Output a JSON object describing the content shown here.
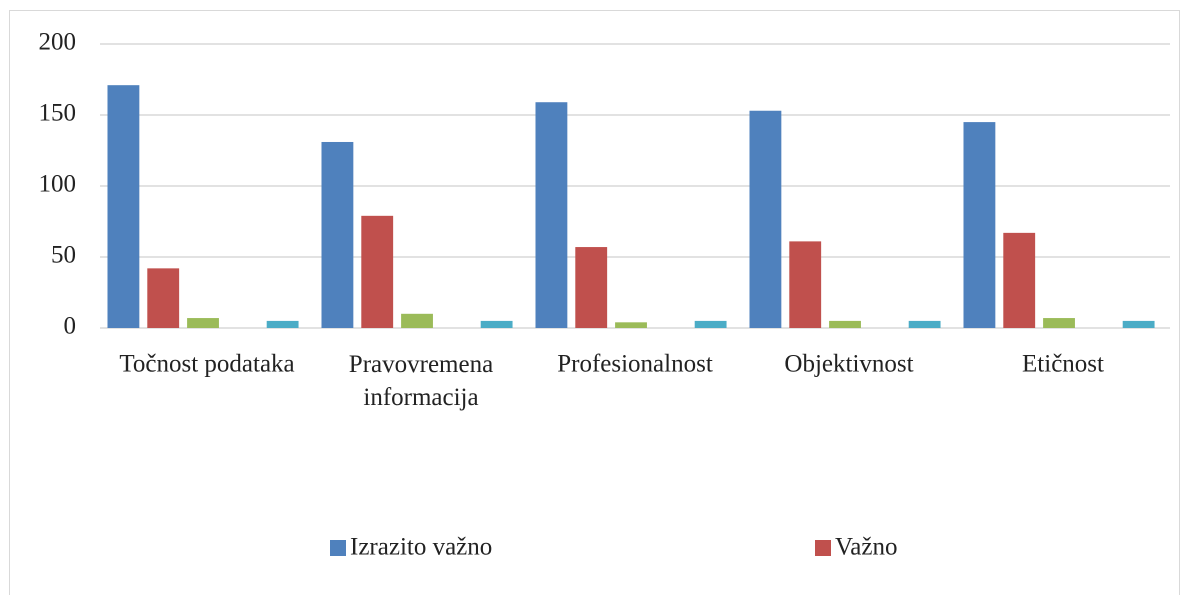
{
  "chart_data": {
    "type": "bar",
    "categories": [
      "Točnost podataka",
      "Pravovremena informacija",
      "Profesionalnost",
      "Objektivnost",
      "Etičnost"
    ],
    "series": [
      {
        "name": "Izrazito važno",
        "color": "#4f81bd",
        "values": [
          171,
          131,
          159,
          153,
          145
        ]
      },
      {
        "name": "Važno",
        "color": "#c0504d",
        "values": [
          42,
          79,
          57,
          61,
          67
        ]
      },
      {
        "color": "#9bbb59",
        "values": [
          7,
          10,
          4,
          5,
          7
        ]
      },
      {
        "color": "#8064a2",
        "values": [
          0,
          0,
          0,
          0,
          0
        ]
      },
      {
        "color": "#4bacc6",
        "values": [
          5,
          5,
          5,
          5,
          5
        ]
      }
    ],
    "ylim": [
      0,
      200
    ],
    "yticks": [
      0,
      50,
      100,
      150,
      200
    ],
    "grid": true
  }
}
